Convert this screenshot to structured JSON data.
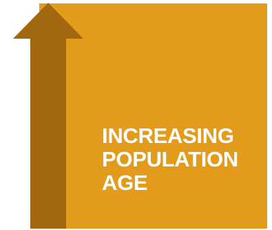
{
  "label": {
    "line1": "INCREASING",
    "line2": "POPULATION",
    "line3": "AGE"
  },
  "icons": {
    "arrow": "up-arrow-icon"
  },
  "colors": {
    "block": "#E39B1C",
    "arrow": "#A0680F",
    "text": "#FFFFFF"
  }
}
